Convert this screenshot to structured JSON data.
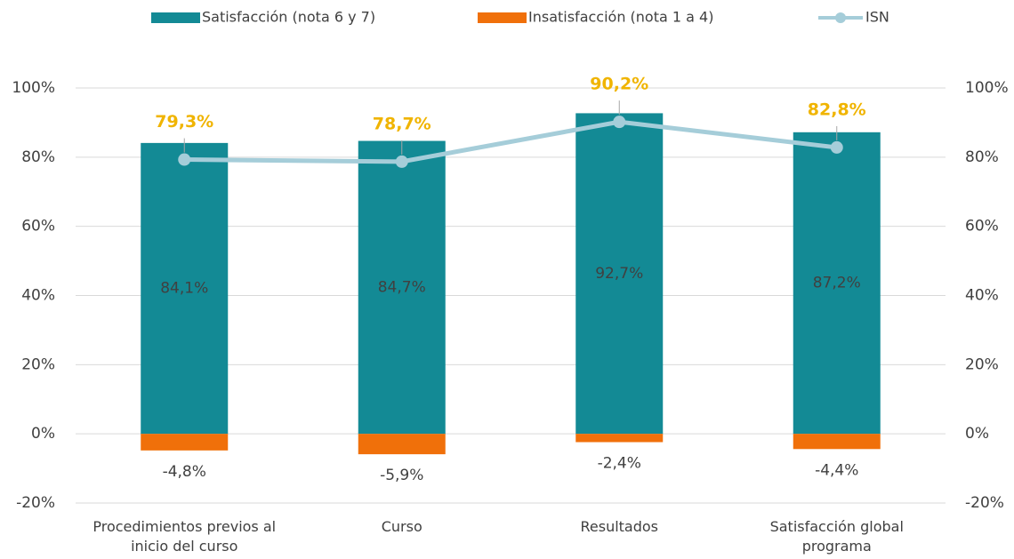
{
  "chart_data": {
    "type": "bar",
    "categories": [
      "Procedimientos previos al inicio del curso",
      "Curso",
      "Resultados",
      "Satisfacción global programa"
    ],
    "series": [
      {
        "name": "Satisfacción (nota 6 y 7)",
        "type": "bar",
        "color": "#138a95",
        "values": [
          84.1,
          84.7,
          92.7,
          87.2
        ],
        "value_labels": [
          "84,1%",
          "84,7%",
          "92,7%",
          "87,2%"
        ]
      },
      {
        "name": "Insatisfacción (nota 1 a 4)",
        "type": "bar",
        "color": "#f0700a",
        "values": [
          -4.8,
          -5.9,
          -2.4,
          -4.4
        ],
        "value_labels": [
          "-4,8%",
          "-5,9%",
          "-2,4%",
          "-4,4%"
        ]
      },
      {
        "name": "ISN",
        "type": "line",
        "axis": "y2",
        "color": "#a5cdd9",
        "label_color": "#f0b400",
        "values": [
          79.3,
          78.7,
          90.2,
          82.8
        ],
        "value_labels": [
          "79,3%",
          "78,7%",
          "90,2%",
          "82,8%"
        ]
      }
    ],
    "ylim": [
      -20,
      100
    ],
    "yticks": [
      {
        "value": -20,
        "label": "-20%"
      },
      {
        "value": 0,
        "label": "0%"
      },
      {
        "value": 20,
        "label": "20%"
      },
      {
        "value": 40,
        "label": "40%"
      },
      {
        "value": 60,
        "label": "60%"
      },
      {
        "value": 80,
        "label": "80%"
      },
      {
        "value": 100,
        "label": "100%"
      }
    ],
    "y2lim": [
      -20,
      100
    ],
    "y2ticks": [
      {
        "value": -20,
        "label": "-20%"
      },
      {
        "value": 0,
        "label": "0%"
      },
      {
        "value": 20,
        "label": "20%"
      },
      {
        "value": 40,
        "label": "40%"
      },
      {
        "value": 60,
        "label": "60%"
      },
      {
        "value": 80,
        "label": "80%"
      },
      {
        "value": 100,
        "label": "100%"
      }
    ],
    "grid": true,
    "legend": "top"
  }
}
